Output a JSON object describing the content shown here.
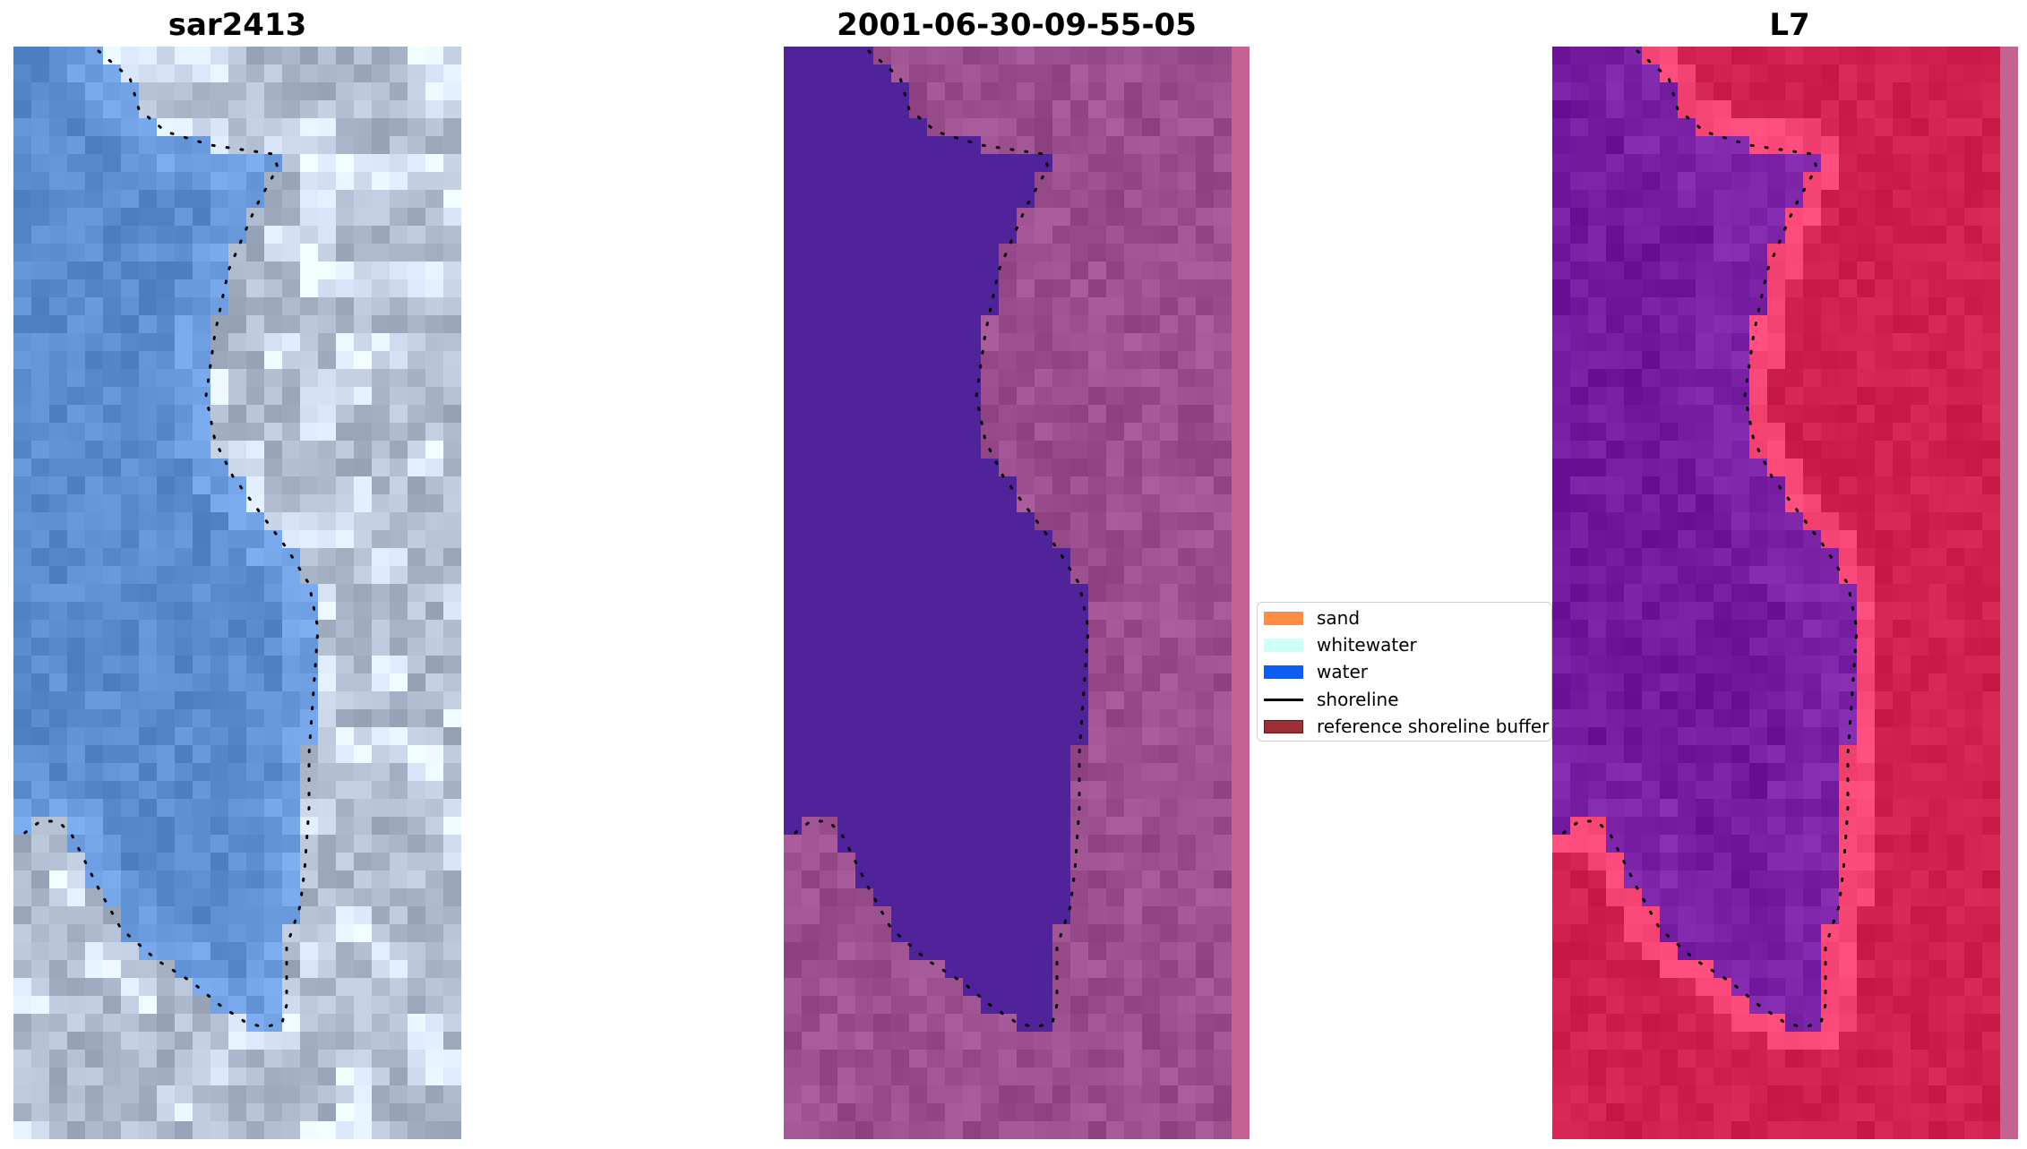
{
  "panels": [
    {
      "title": "sar2413",
      "image": "rgb satellite image"
    },
    {
      "title": "2001-06-30-09-55-05",
      "image": "classified image"
    },
    {
      "title": "L7",
      "image": "mndwi image"
    }
  ],
  "legend": {
    "items": [
      {
        "label": "sand",
        "color": "#ff8c42",
        "kind": "patch"
      },
      {
        "label": "whitewater",
        "color": "#ccfff8",
        "kind": "patch"
      },
      {
        "label": "water",
        "color": "#0a5ff0",
        "kind": "patch"
      },
      {
        "label": "shoreline",
        "color": "#000000",
        "kind": "line"
      },
      {
        "label": "reference shoreline buffer",
        "color": "#9b2f35",
        "kind": "patch"
      }
    ]
  },
  "colors": {
    "rgb_water": "#5a8ccf",
    "rgb_land": "#b7c3d6",
    "class_water": "#51239a",
    "class_land": "#9c4f8e",
    "mndwi_water": "#7c23a8",
    "mndwi_land": "#d11f4f",
    "shoreline": "#000000"
  }
}
